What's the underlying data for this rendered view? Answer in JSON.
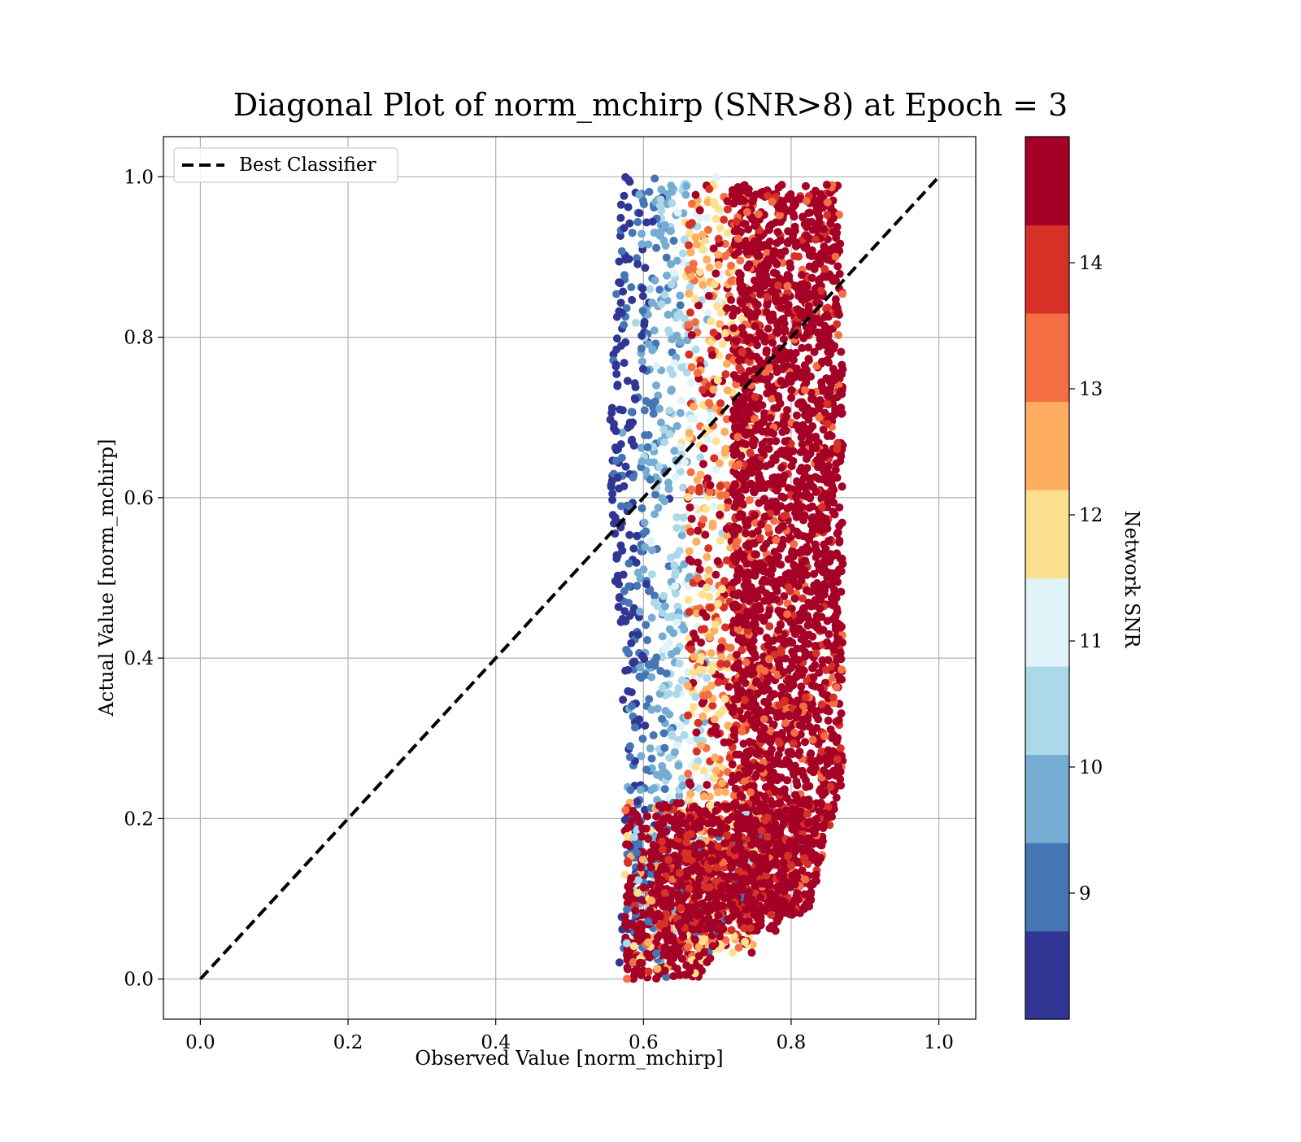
{
  "chart_data": {
    "type": "scatter",
    "title": "Diagonal Plot of norm_mchirp (SNR>8) at Epoch = 3",
    "xlabel": "Observed Value [norm_mchirp]",
    "ylabel": "Actual Value [norm_mchirp]",
    "xlim": [
      -0.05,
      1.05
    ],
    "ylim": [
      -0.05,
      1.05
    ],
    "xticks": [
      0.0,
      0.2,
      0.4,
      0.6,
      0.8,
      1.0
    ],
    "yticks": [
      0.0,
      0.2,
      0.4,
      0.6,
      0.8,
      1.0
    ],
    "xtick_labels": [
      "0.0",
      "0.2",
      "0.4",
      "0.6",
      "0.8",
      "1.0"
    ],
    "ytick_labels": [
      "0.0",
      "0.2",
      "0.4",
      "0.6",
      "0.8",
      "1.0"
    ],
    "grid": true,
    "legend": {
      "position": "upper-left",
      "entries": [
        "Best Classifier"
      ]
    },
    "reference_line": {
      "name": "Best Classifier",
      "style": "dashed",
      "color": "#000000",
      "x": [
        0.0,
        1.0
      ],
      "y": [
        0.0,
        1.0
      ]
    },
    "colorbar": {
      "label": "Network SNR",
      "range": [
        8.0,
        15.0
      ],
      "ticks": [
        9,
        10,
        11,
        12,
        13,
        14
      ],
      "tick_labels": [
        "9",
        "10",
        "11",
        "12",
        "13",
        "14"
      ],
      "colors": [
        "#313695",
        "#4575b4",
        "#74add1",
        "#abd9e9",
        "#e0f3f8",
        "#fee090",
        "#fdae61",
        "#f46d43",
        "#d73027",
        "#a50026"
      ]
    },
    "scatter_summary": {
      "observed_range": [
        0.53,
        0.885
      ],
      "actual_range": [
        0.0,
        1.0
      ],
      "high_snr_band_observed": [
        0.72,
        0.87
      ],
      "low_snr_band_observed": [
        0.56,
        0.7
      ]
    }
  }
}
